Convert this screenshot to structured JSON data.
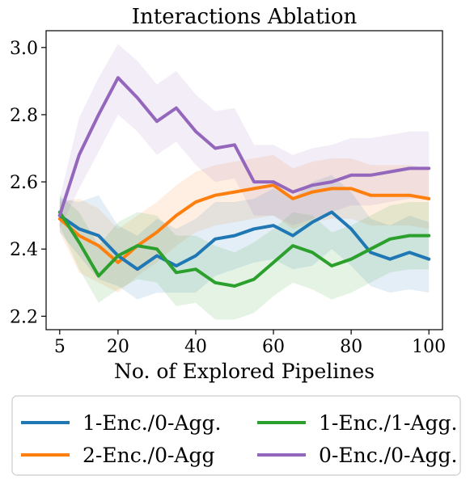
{
  "chart_data": {
    "type": "line",
    "title": "Interactions Ablation",
    "xlabel": "No. of Explored Pipelines",
    "ylabel": "",
    "xlim": [
      1.5,
      103.5
    ],
    "ylim": [
      2.16,
      3.05
    ],
    "xticks": [
      5,
      20,
      40,
      60,
      80,
      100
    ],
    "yticks": [
      2.2,
      2.4,
      2.6,
      2.8,
      3.0
    ],
    "xtick_labels": [
      "5",
      "20",
      "40",
      "60",
      "80",
      "100"
    ],
    "ytick_labels": [
      "2.2",
      "2.4",
      "2.6",
      "2.8",
      "3.0"
    ],
    "grid": false,
    "legend_position": "bottom-outside",
    "x": [
      5,
      10,
      15,
      20,
      25,
      30,
      35,
      40,
      45,
      50,
      55,
      60,
      65,
      70,
      75,
      80,
      85,
      90,
      95,
      100
    ],
    "series": [
      {
        "name": "1-Enc./0-Agg.",
        "color": "#1f77b4",
        "values": [
          2.5,
          2.46,
          2.44,
          2.38,
          2.34,
          2.38,
          2.35,
          2.38,
          2.43,
          2.44,
          2.46,
          2.47,
          2.44,
          2.48,
          2.51,
          2.46,
          2.39,
          2.37,
          2.39,
          2.37
        ],
        "lower": [
          2.45,
          2.38,
          2.31,
          2.29,
          2.25,
          2.27,
          2.27,
          2.27,
          2.32,
          2.34,
          2.36,
          2.37,
          2.34,
          2.35,
          2.4,
          2.35,
          2.29,
          2.27,
          2.28,
          2.27
        ],
        "upper": [
          2.55,
          2.54,
          2.56,
          2.47,
          2.44,
          2.49,
          2.46,
          2.49,
          2.54,
          2.54,
          2.55,
          2.58,
          2.55,
          2.6,
          2.62,
          2.57,
          2.49,
          2.47,
          2.5,
          2.48
        ]
      },
      {
        "name": "2-Enc./0-Agg",
        "color": "#ff7f0e",
        "values": [
          2.49,
          2.44,
          2.41,
          2.36,
          2.41,
          2.45,
          2.5,
          2.54,
          2.56,
          2.57,
          2.58,
          2.59,
          2.55,
          2.57,
          2.58,
          2.58,
          2.56,
          2.56,
          2.56,
          2.55
        ],
        "lower": [
          2.45,
          2.33,
          2.3,
          2.27,
          2.32,
          2.36,
          2.41,
          2.45,
          2.47,
          2.48,
          2.49,
          2.5,
          2.46,
          2.48,
          2.49,
          2.49,
          2.47,
          2.47,
          2.47,
          2.46
        ],
        "upper": [
          2.54,
          2.55,
          2.52,
          2.46,
          2.5,
          2.54,
          2.59,
          2.63,
          2.65,
          2.66,
          2.67,
          2.68,
          2.64,
          2.66,
          2.67,
          2.67,
          2.65,
          2.65,
          2.65,
          2.64
        ]
      },
      {
        "name": "1-Enc./1-Agg.",
        "color": "#2ca02c",
        "values": [
          2.51,
          2.42,
          2.32,
          2.38,
          2.41,
          2.4,
          2.33,
          2.34,
          2.3,
          2.29,
          2.31,
          2.36,
          2.41,
          2.39,
          2.35,
          2.37,
          2.4,
          2.43,
          2.44,
          2.44
        ],
        "lower": [
          2.47,
          2.34,
          2.24,
          2.28,
          2.31,
          2.3,
          2.23,
          2.24,
          2.19,
          2.19,
          2.21,
          2.26,
          2.3,
          2.28,
          2.25,
          2.27,
          2.3,
          2.33,
          2.34,
          2.34
        ],
        "upper": [
          2.56,
          2.51,
          2.41,
          2.48,
          2.51,
          2.5,
          2.44,
          2.44,
          2.41,
          2.39,
          2.42,
          2.46,
          2.51,
          2.5,
          2.45,
          2.47,
          2.5,
          2.53,
          2.54,
          2.54
        ]
      },
      {
        "name": "0-Enc./0-Agg.",
        "color": "#9467bd",
        "values": [
          2.5,
          2.68,
          2.8,
          2.91,
          2.85,
          2.78,
          2.82,
          2.75,
          2.7,
          2.71,
          2.6,
          2.6,
          2.57,
          2.59,
          2.6,
          2.62,
          2.62,
          2.63,
          2.64,
          2.64
        ],
        "lower": [
          2.46,
          2.58,
          2.69,
          2.8,
          2.75,
          2.68,
          2.72,
          2.65,
          2.6,
          2.61,
          2.5,
          2.5,
          2.47,
          2.49,
          2.51,
          2.53,
          2.53,
          2.54,
          2.55,
          2.55
        ],
        "upper": [
          2.55,
          2.79,
          2.91,
          3.01,
          2.96,
          2.89,
          2.93,
          2.86,
          2.81,
          2.82,
          2.71,
          2.71,
          2.68,
          2.7,
          2.71,
          2.73,
          2.73,
          2.74,
          2.75,
          2.75
        ]
      }
    ]
  }
}
